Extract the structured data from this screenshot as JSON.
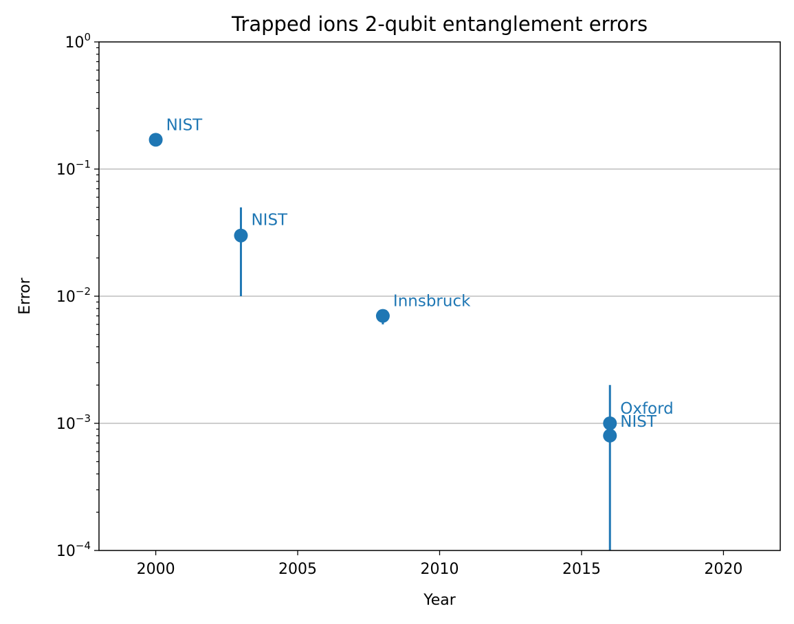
{
  "chart_data": {
    "type": "scatter",
    "title": "Trapped ions 2-qubit entanglement errors",
    "xlabel": "Year",
    "ylabel": "Error",
    "xlim": [
      1998,
      2022
    ],
    "ylim": [
      0.0001,
      1
    ],
    "yscale": "log",
    "grid": "horizontal-major",
    "legend": "none",
    "x_ticks": [
      2000,
      2005,
      2010,
      2015,
      2020
    ],
    "y_ticks": [
      {
        "value": 0.0001,
        "base": "10",
        "exp": "−4"
      },
      {
        "value": 0.001,
        "base": "10",
        "exp": "−3"
      },
      {
        "value": 0.01,
        "base": "10",
        "exp": "−2"
      },
      {
        "value": 0.1,
        "base": "10",
        "exp": "−1"
      },
      {
        "value": 1,
        "base": "10",
        "exp": "0"
      }
    ],
    "points": [
      {
        "label": "NIST",
        "x": 2000,
        "y": 0.17,
        "err_low": 0.17,
        "err_high": 0.17
      },
      {
        "label": "NIST",
        "x": 2003,
        "y": 0.03,
        "err_low": 0.01,
        "err_high": 0.05
      },
      {
        "label": "Innsbruck",
        "x": 2008,
        "y": 0.007,
        "err_low": 0.006,
        "err_high": 0.0072
      },
      {
        "label": "Oxford",
        "x": 2016,
        "y": 0.001,
        "err_low": 0.001,
        "err_high": 0.001
      },
      {
        "label": "NIST",
        "x": 2016,
        "y": 0.0008,
        "err_low": 0.0001,
        "err_high": 0.002
      }
    ]
  },
  "colors": {
    "series": "#1f77b4",
    "grid": "#b0b0b0",
    "axes": "#000000",
    "background": "#ffffff"
  }
}
